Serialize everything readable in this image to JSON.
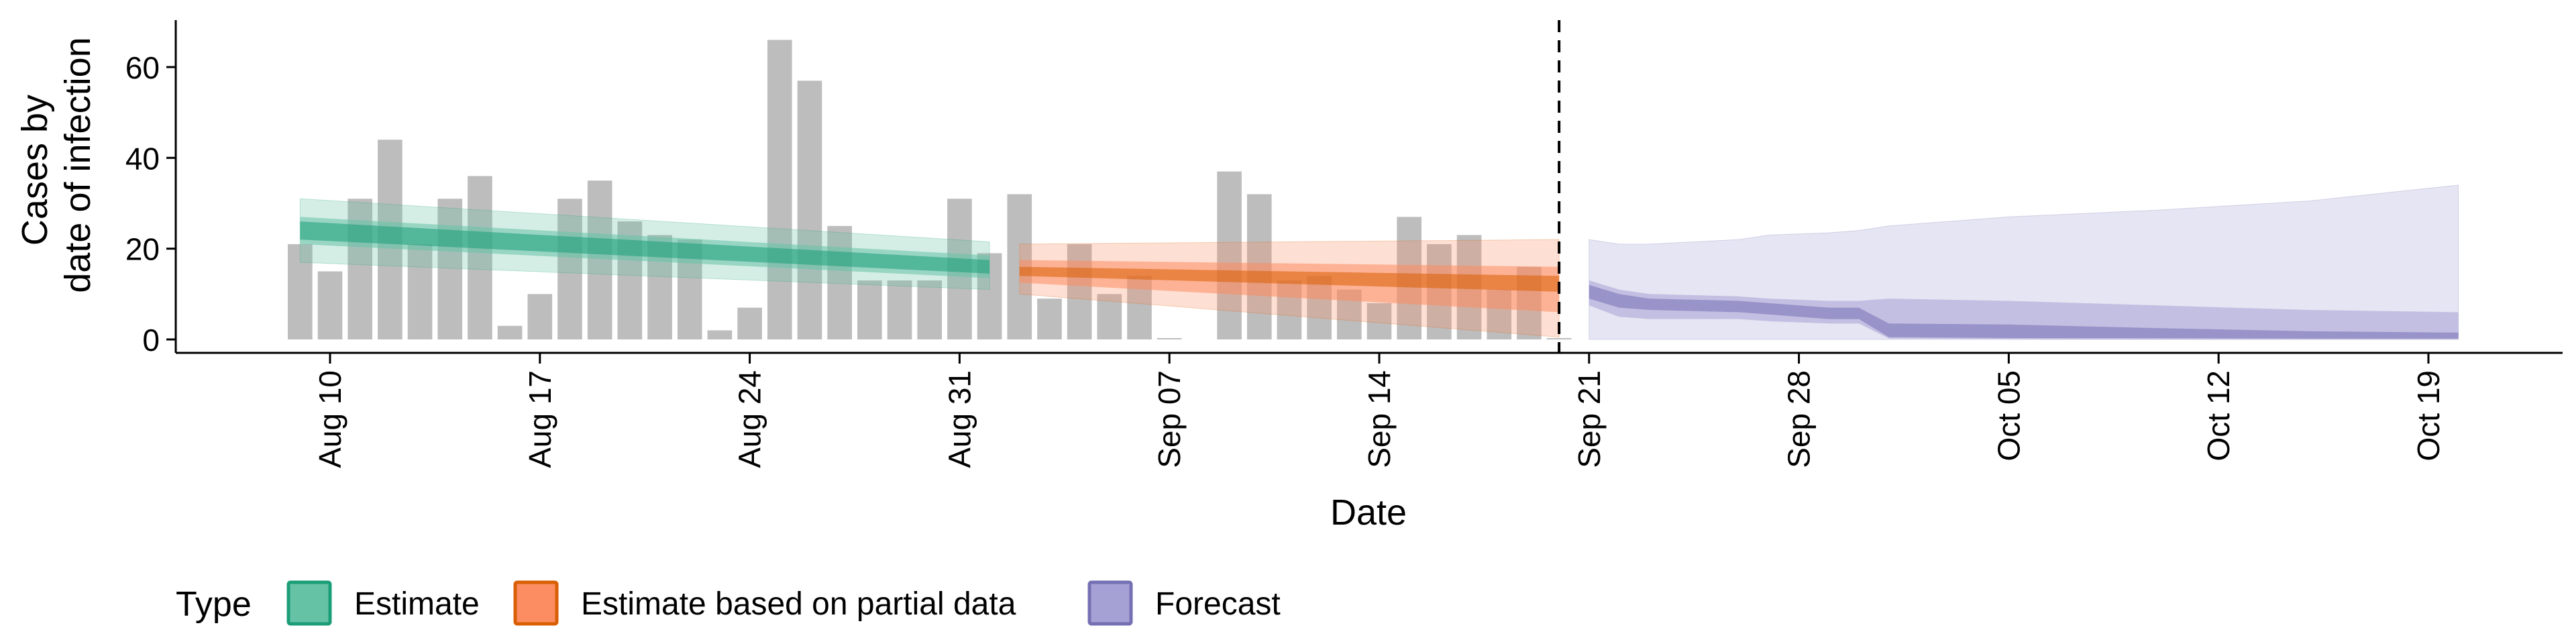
{
  "chart_data": {
    "type": "bar",
    "title": "",
    "xlabel": "Date",
    "ylabel_lines": [
      "Cases by",
      "date of infection"
    ],
    "ylim": [
      -3,
      71
    ],
    "yticks": [
      0,
      20,
      40,
      60
    ],
    "grid": false,
    "x_tick_labels": [
      "Aug 10",
      "Aug 17",
      "Aug 24",
      "Aug 31",
      "Sep 07",
      "Sep 14",
      "Sep 21",
      "Sep 28",
      "Oct 05",
      "Oct 12",
      "Oct 19"
    ],
    "x_tick_dates": [
      "2020-08-10",
      "2020-08-17",
      "2020-08-24",
      "2020-08-31",
      "2020-09-07",
      "2020-09-14",
      "2020-09-21",
      "2020-09-28",
      "2020-10-05",
      "2020-10-12",
      "2020-10-19"
    ],
    "forecast_start_line": "2020-09-20",
    "bar_color": "#bdbdbd",
    "cases": {
      "dates": [
        "2020-08-09",
        "2020-08-10",
        "2020-08-11",
        "2020-08-12",
        "2020-08-13",
        "2020-08-14",
        "2020-08-15",
        "2020-08-16",
        "2020-08-17",
        "2020-08-18",
        "2020-08-19",
        "2020-08-20",
        "2020-08-21",
        "2020-08-22",
        "2020-08-23",
        "2020-08-24",
        "2020-08-25",
        "2020-08-26",
        "2020-08-27",
        "2020-08-28",
        "2020-08-29",
        "2020-08-30",
        "2020-08-31",
        "2020-09-01",
        "2020-09-02",
        "2020-09-03",
        "2020-09-04",
        "2020-09-05",
        "2020-09-06",
        "2020-09-07",
        "2020-09-08",
        "2020-09-09",
        "2020-09-10",
        "2020-09-11",
        "2020-09-12",
        "2020-09-13",
        "2020-09-14",
        "2020-09-15",
        "2020-09-16",
        "2020-09-17",
        "2020-09-18",
        "2020-09-19",
        "2020-09-20"
      ],
      "values": [
        21,
        15,
        31,
        44,
        21,
        31,
        36,
        3,
        10,
        31,
        35,
        26,
        23,
        22,
        2,
        7,
        66,
        57,
        25,
        13,
        13,
        13,
        31,
        19,
        32,
        9,
        21,
        10,
        14,
        0.3,
        0,
        37,
        32,
        13,
        14,
        11,
        8,
        27,
        21,
        23,
        11,
        16,
        0.3
      ]
    },
    "legend_title": "Type",
    "legend_position": "bottom",
    "series": [
      {
        "name": "Estimate",
        "color": "#1b9e77",
        "fill": "#66c2a5",
        "dates": [
          "2020-08-09",
          "2020-09-01"
        ],
        "median": [
          24,
          16
        ],
        "ci20": [
          [
            22,
            26
          ],
          [
            14.5,
            17.5
          ]
        ],
        "ci50": [
          [
            21,
            27
          ],
          [
            13.5,
            18.5
          ]
        ],
        "ci90": [
          [
            17,
            31
          ],
          [
            11,
            21.5
          ]
        ]
      },
      {
        "name": "Estimate based on partial data",
        "color": "#d95f02",
        "fill": "#fc8d62",
        "dates": [
          "2020-09-02",
          "2020-09-20"
        ],
        "median": [
          15,
          12
        ],
        "ci20": [
          [
            14,
            16
          ],
          [
            10.5,
            14
          ]
        ],
        "ci50": [
          [
            12.5,
            17.5
          ],
          [
            6,
            16
          ]
        ],
        "ci90": [
          [
            10,
            21
          ],
          [
            0.5,
            22
          ]
        ]
      },
      {
        "name": "Forecast",
        "color": "#7570b3",
        "fill": "#a6a1d4",
        "dates": [
          "2020-09-21",
          "2020-09-22",
          "2020-09-23",
          "2020-09-26",
          "2020-09-27",
          "2020-09-29",
          "2020-09-30",
          "2020-10-01",
          "2020-10-05",
          "2020-10-10",
          "2020-10-15",
          "2020-10-20"
        ],
        "ci50": [
          [
            7.5,
            13
          ],
          [
            5,
            11
          ],
          [
            4.5,
            10
          ],
          [
            4.5,
            9.5
          ],
          [
            4,
            9
          ],
          [
            3.5,
            8.5
          ],
          [
            3.5,
            8.5
          ],
          [
            0.2,
            9
          ],
          [
            0.1,
            8.5
          ],
          [
            0,
            7.5
          ],
          [
            0,
            6.5
          ],
          [
            0,
            6
          ]
        ],
        "ci20": [
          [
            9,
            12
          ],
          [
            7,
            10
          ],
          [
            6.5,
            9
          ],
          [
            6,
            8.5
          ],
          [
            5.5,
            8
          ],
          [
            4.5,
            7
          ],
          [
            4.5,
            7
          ],
          [
            0.5,
            3.5
          ],
          [
            0.3,
            3.3
          ],
          [
            0.3,
            2.5
          ],
          [
            0.2,
            1.8
          ],
          [
            0.2,
            1.5
          ]
        ],
        "ci90": [
          [
            0,
            22
          ],
          [
            0,
            21
          ],
          [
            0,
            21
          ],
          [
            0,
            22
          ],
          [
            0,
            23
          ],
          [
            0,
            23.5
          ],
          [
            0,
            24
          ],
          [
            0,
            25
          ],
          [
            0,
            27
          ],
          [
            0,
            28.5
          ],
          [
            0,
            30.5
          ],
          [
            0,
            34
          ]
        ]
      }
    ]
  }
}
